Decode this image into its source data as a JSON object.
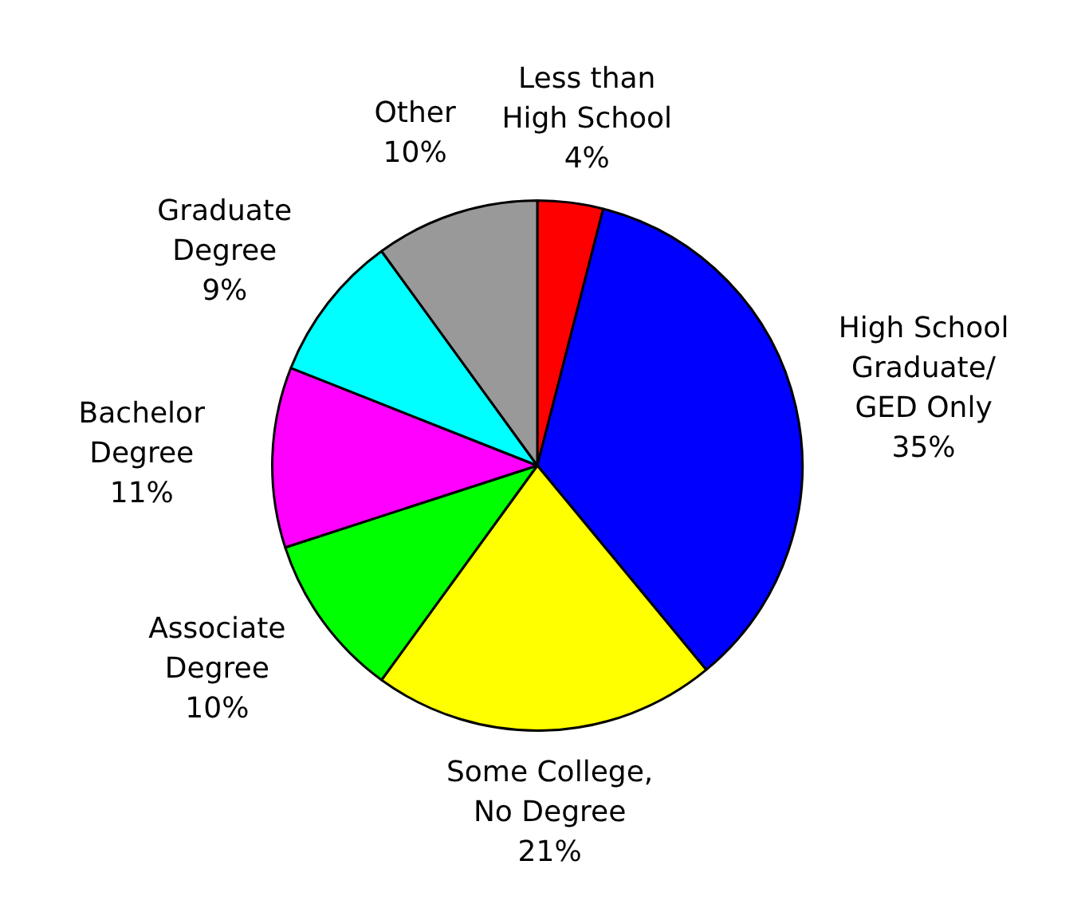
{
  "chart_data": {
    "type": "pie",
    "categories": [
      "Less than High School",
      "High School Graduate/ GED Only",
      "Some College, No Degree",
      "Associate Degree",
      "Bachelor Degree",
      "Graduate Degree",
      "Other"
    ],
    "values": [
      4,
      35,
      21,
      10,
      11,
      9,
      10
    ],
    "colors": [
      "#ff0000",
      "#0000ff",
      "#ffff00",
      "#00ff00",
      "#ff00ff",
      "#00ffff",
      "#999999"
    ],
    "value_labels": [
      "4%",
      "35%",
      "21%",
      "10%",
      "11%",
      "9%",
      "10%"
    ],
    "legend": false
  }
}
